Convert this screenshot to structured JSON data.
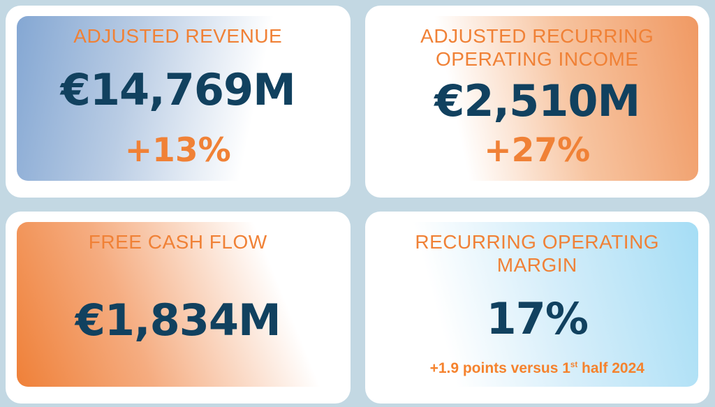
{
  "colors": {
    "page_background": "#C3D8E3",
    "card_background": "#FFFFFF",
    "accent_orange": "#F08136",
    "value_navy": "#11415F",
    "gradient_blue": "#84A7D3",
    "gradient_orange_top_right": "#F09963",
    "gradient_orange_bottom_left": "#EF8038",
    "gradient_sky": "#A5DDF5"
  },
  "cards": [
    {
      "title": "ADJUSTED REVENUE",
      "value": "€14,769M",
      "change": "+13%"
    },
    {
      "title": "ADJUSTED RECURRING OPERATING INCOME",
      "value": "€2,510M",
      "change": "+27%"
    },
    {
      "title": "FREE CASH FLOW",
      "value": "€1,834M"
    },
    {
      "title": "RECURRING OPERATING MARGIN",
      "value": "17%",
      "note": {
        "prefix": "+1.9 points versus 1",
        "sup": "st",
        "suffix": " half 2024"
      }
    }
  ]
}
